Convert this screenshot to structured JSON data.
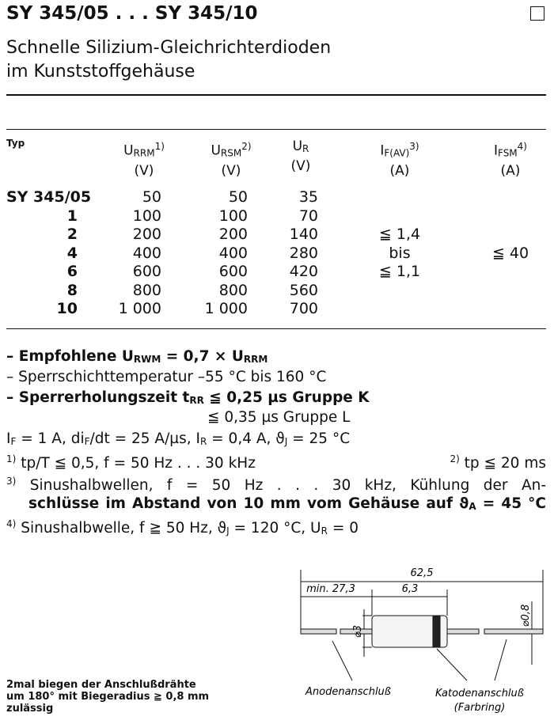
{
  "header": {
    "title": "SY 345/05 . . . SY 345/10",
    "subtitle": [
      "Schnelle Silizium-Gleichrichterdioden",
      "im Kunststoffgehäuse"
    ]
  },
  "table": {
    "columns": [
      {
        "label": "Typ"
      },
      {
        "label": "U",
        "sub": "RRM",
        "note": "1)",
        "unit": "(V)"
      },
      {
        "label": "U",
        "sub": "RSM",
        "note": "2)",
        "unit": "(V)"
      },
      {
        "label": "U",
        "sub": "R",
        "unit": "(V)"
      },
      {
        "label": "I",
        "sub": "F(AV)",
        "note": "3)",
        "unit": "(A)"
      },
      {
        "label": "I",
        "sub": "FSM",
        "note": "4)",
        "unit": "(A)"
      }
    ],
    "rows": [
      [
        "SY 345/05",
        "50",
        "50",
        "35"
      ],
      [
        "1",
        "100",
        "100",
        "70"
      ],
      [
        "2",
        "200",
        "200",
        "140"
      ],
      [
        "4",
        "400",
        "400",
        "280"
      ],
      [
        "6",
        "600",
        "600",
        "420"
      ],
      [
        "8",
        "800",
        "800",
        "560"
      ],
      [
        "10",
        "1 000",
        "1 000",
        "700"
      ]
    ],
    "if_av": [
      "≦ 1,4",
      "bis",
      "≦ 1,1"
    ],
    "ifsm": "≦ 40"
  },
  "notes": [
    [
      "– Empfohlene U",
      {
        "sub": "RWM"
      },
      " = 0,7 × U",
      {
        "sub": "RRM"
      }
    ],
    [
      "– Sperrschichttemperatur –55 °C bis 160 °C"
    ],
    [
      "– Sperrerholungszeit t",
      {
        "sub": "rr"
      },
      " ≦ 0,25 µs Gruppe K"
    ],
    [
      "≦ 0,35 µs Gruppe L"
    ],
    [
      "I",
      {
        "sub": "F"
      },
      " = 1 A, di",
      {
        "sub": "F"
      },
      "/dt = 25 A/µs, I",
      {
        "sub": "R"
      },
      " = 0,4 A, ϑ",
      {
        "sub": "j"
      },
      " = 25 °C"
    ],
    [
      {
        "sup": "1)"
      },
      " tp/T ≦ 0,5, f = 50 Hz . . . 30 kHz"
    ],
    [
      {
        "sup": "2)"
      },
      " tp ≦ 20 ms"
    ],
    [
      {
        "sup": "3)"
      },
      " Sinushalbwellen,  f = 50 Hz . . . 30 kHz,  Kühlung  der  An-"
    ],
    [
      "schlüsse im Abstand von 10 mm vom Gehäuse auf ϑ",
      {
        "sub": "a"
      },
      " = 45 °C"
    ],
    [
      {
        "sup": "4)"
      },
      " Sinushalbwelle, f ≧ 50 Hz, ϑ",
      {
        "sub": "j"
      },
      " = 120 °C, U",
      {
        "sub": "R"
      },
      " = 0"
    ]
  ],
  "footer": [
    "2mal biegen der Anschlußdrähte",
    "um 180° mit Biegeradius ≧ 0,8 mm",
    "zulässig"
  ],
  "drawing": {
    "total_length": "62,5",
    "lead_length": "min. 27,3",
    "body_length": "6,3",
    "body_diameter": "⌀3",
    "lead_diameter": "⌀0,8",
    "anode": "Anodenanschluß",
    "cathode": "Katodenanschluß",
    "cathode_note": "(Farbring)"
  }
}
